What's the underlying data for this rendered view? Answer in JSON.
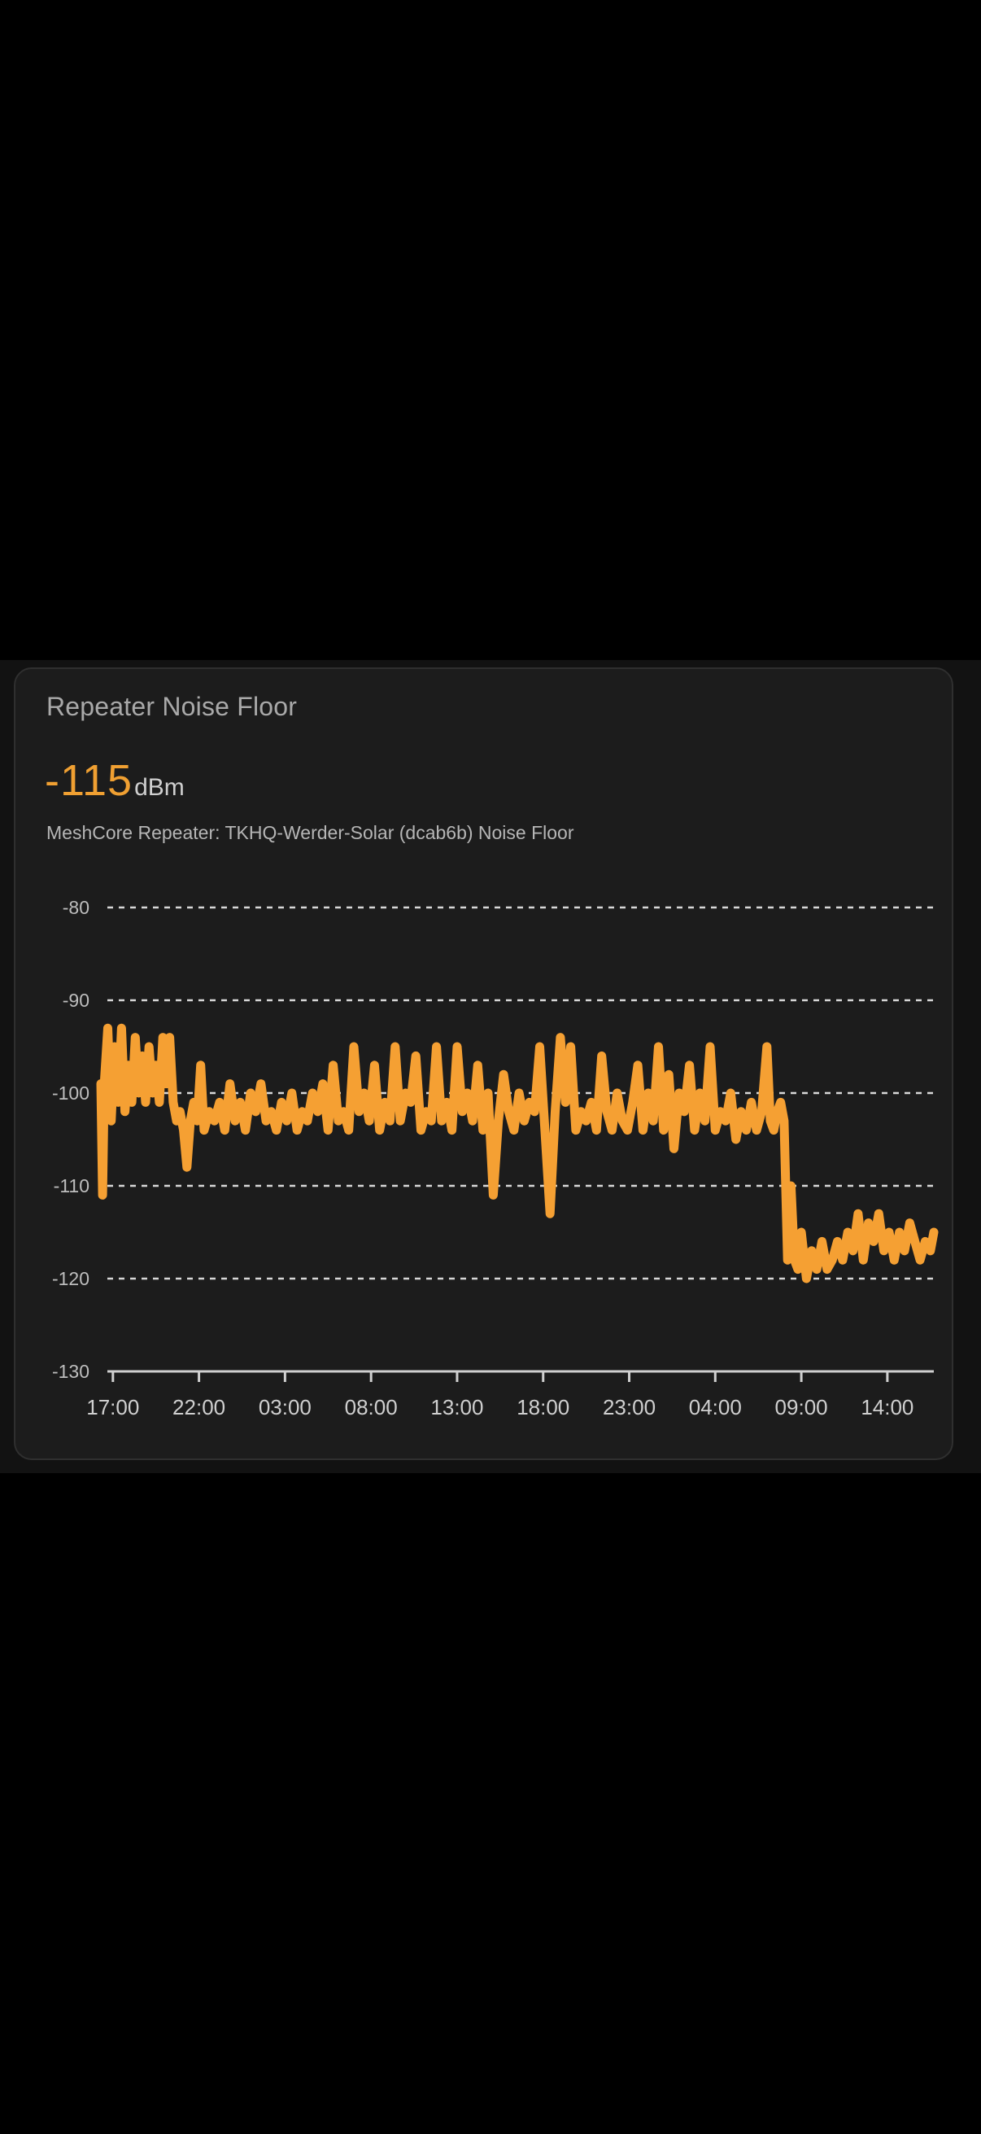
{
  "card": {
    "title": "Repeater Noise Floor",
    "value": "-115",
    "unit": "dBm",
    "subtitle": "MeshCore Repeater: TKHQ-Werder-Solar (dcab6b) Noise Floor"
  },
  "colors": {
    "page_background": "#000000",
    "band_background": "#121212",
    "card_background": "#1c1c1c",
    "card_border": "#2f2f2f",
    "accent": "#f0a032",
    "line": "#f5a033",
    "grid": "#d8d8d8",
    "axis": "#d0d0d0"
  },
  "chart_data": {
    "type": "line",
    "title": "Repeater Noise Floor",
    "subtitle": "MeshCore Repeater: TKHQ-Werder-Solar (dcab6b) Noise Floor",
    "current_value": -115,
    "unit": "dBm",
    "xlabel": "",
    "ylabel": "",
    "ylim": [
      -130,
      -80
    ],
    "y_ticks": [
      -80,
      -90,
      -100,
      -110,
      -120,
      -130
    ],
    "x_ticks": [
      "17:00",
      "22:00",
      "03:00",
      "08:00",
      "13:00",
      "18:00",
      "23:00",
      "04:00",
      "09:00",
      "14:00"
    ],
    "x_tick_hours": [
      0,
      5,
      10,
      15,
      20,
      25,
      30,
      35,
      40,
      45
    ],
    "x_range_hours": [
      -0.7,
      47.7
    ],
    "grid": "horizontal dashed",
    "legend": "none",
    "series": [
      {
        "name": "MeshCore Repeater: TKHQ-Werder-Solar (dcab6b) Noise Floor",
        "x_hours": [
          -0.7,
          -0.6,
          -0.5,
          -0.3,
          -0.1,
          0.1,
          0.3,
          0.5,
          0.7,
          0.9,
          1.1,
          1.3,
          1.5,
          1.7,
          1.9,
          2.1,
          2.3,
          2.5,
          2.7,
          2.9,
          3.1,
          3.3,
          3.5,
          3.7,
          3.9,
          4.1,
          4.3,
          4.5,
          4.7,
          4.9,
          5.1,
          5.3,
          5.6,
          5.9,
          6.2,
          6.5,
          6.8,
          7.1,
          7.4,
          7.7,
          8.0,
          8.3,
          8.6,
          8.9,
          9.2,
          9.5,
          9.8,
          10.1,
          10.4,
          10.7,
          11.0,
          11.3,
          11.6,
          11.9,
          12.2,
          12.5,
          12.8,
          13.1,
          13.4,
          13.7,
          14.0,
          14.3,
          14.6,
          14.9,
          15.2,
          15.5,
          15.8,
          16.1,
          16.4,
          16.7,
          17.0,
          17.3,
          17.6,
          17.9,
          18.2,
          18.5,
          18.8,
          19.1,
          19.4,
          19.7,
          20.0,
          20.3,
          20.6,
          20.9,
          21.2,
          21.5,
          21.8,
          22.1,
          22.4,
          22.7,
          23.0,
          23.3,
          23.6,
          23.9,
          24.2,
          24.5,
          24.8,
          25.1,
          25.4,
          25.7,
          26.0,
          26.3,
          26.6,
          26.9,
          27.2,
          27.5,
          27.8,
          28.1,
          28.4,
          28.7,
          29.0,
          29.3,
          29.6,
          29.9,
          30.2,
          30.5,
          30.8,
          31.1,
          31.4,
          31.7,
          32.0,
          32.3,
          32.6,
          32.9,
          33.2,
          33.5,
          33.8,
          34.1,
          34.4,
          34.7,
          35.0,
          35.3,
          35.6,
          35.9,
          36.2,
          36.5,
          36.8,
          37.1,
          37.4,
          37.7,
          38.0,
          38.2,
          38.4,
          38.6,
          38.8,
          39.0,
          39.2,
          39.4,
          39.6,
          39.8,
          40.0,
          40.3,
          40.6,
          40.9,
          41.2,
          41.5,
          41.8,
          42.1,
          42.4,
          42.7,
          43.0,
          43.3,
          43.6,
          43.9,
          44.2,
          44.5,
          44.8,
          45.1,
          45.4,
          45.7,
          46.0,
          46.3,
          46.6,
          46.9,
          47.2,
          47.5,
          47.7
        ],
        "values": [
          -99,
          -111,
          -99,
          -93,
          -103,
          -95,
          -101,
          -93,
          -102,
          -97,
          -101,
          -94,
          -100,
          -96,
          -101,
          -95,
          -100,
          -97,
          -101,
          -94,
          -99,
          -94,
          -101,
          -103,
          -102,
          -104,
          -108,
          -103,
          -101,
          -103,
          -97,
          -104,
          -102,
          -103,
          -101,
          -104,
          -99,
          -103,
          -101,
          -104,
          -100,
          -102,
          -99,
          -103,
          -102,
          -104,
          -101,
          -103,
          -100,
          -104,
          -102,
          -103,
          -100,
          -102,
          -99,
          -104,
          -97,
          -103,
          -102,
          -104,
          -95,
          -102,
          -100,
          -103,
          -97,
          -104,
          -101,
          -103,
          -95,
          -103,
          -100,
          -101,
          -96,
          -104,
          -102,
          -103,
          -95,
          -103,
          -101,
          -104,
          -95,
          -102,
          -100,
          -103,
          -97,
          -104,
          -100,
          -111,
          -103,
          -98,
          -102,
          -104,
          -100,
          -103,
          -101,
          -102,
          -95,
          -104,
          -113,
          -102,
          -94,
          -101,
          -95,
          -104,
          -102,
          -103,
          -101,
          -104,
          -96,
          -102,
          -104,
          -100,
          -103,
          -104,
          -101,
          -97,
          -104,
          -100,
          -103,
          -95,
          -104,
          -98,
          -106,
          -100,
          -102,
          -97,
          -104,
          -100,
          -103,
          -95,
          -104,
          -102,
          -103,
          -100,
          -105,
          -102,
          -104,
          -101,
          -104,
          -102,
          -95,
          -103,
          -104,
          -102,
          -101,
          -103,
          -118,
          -110,
          -118,
          -119,
          -115,
          -120,
          -117,
          -119,
          -116,
          -119,
          -118,
          -116,
          -118,
          -115,
          -117,
          -113,
          -118,
          -114,
          -116,
          -113,
          -117,
          -115,
          -118,
          -115,
          -117,
          -114,
          -116,
          -118,
          -116,
          -117,
          -115
        ]
      }
    ]
  }
}
